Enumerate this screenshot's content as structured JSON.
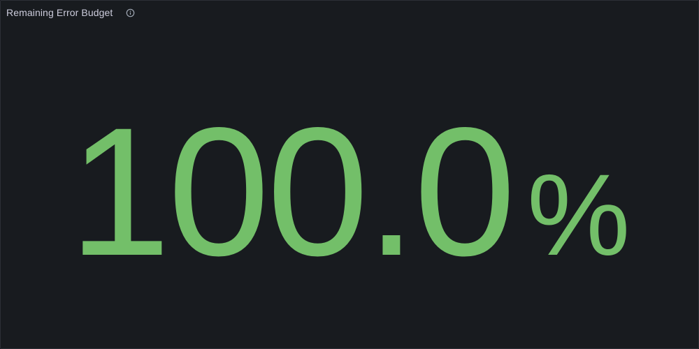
{
  "panel": {
    "title": "Remaining Error Budget",
    "info_icon": "info-circle-icon"
  },
  "stat": {
    "value": "100.0",
    "unit": "%",
    "color": "#73bf69"
  },
  "colors": {
    "background": "#181b1f",
    "border": "#2c2f36",
    "title": "#ccccdc",
    "icon": "#9fa7b3"
  }
}
